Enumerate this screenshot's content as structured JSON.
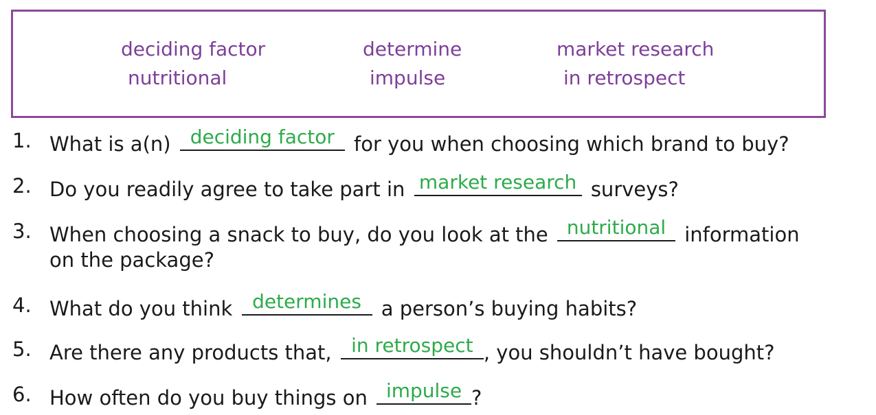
{
  "word_bank": {
    "col1": [
      "deciding factor",
      "nutritional"
    ],
    "col2": [
      "determine",
      "impulse"
    ],
    "col3": [
      "market research",
      "in retrospect"
    ]
  },
  "questions": [
    {
      "number": "1.",
      "before": "What is a(n)",
      "answer": "deciding factor",
      "after": "for you when choosing which brand to buy?"
    },
    {
      "number": "2.",
      "before": "Do you readily agree to take part in",
      "answer": "market research",
      "after": "surveys?"
    },
    {
      "number": "3.",
      "before": "When choosing a snack to buy, do you look at the",
      "answer": "nutritional",
      "after": "information",
      "line2": "on the package?"
    },
    {
      "number": "4.",
      "before": "What do you think",
      "answer": "determines",
      "after": "a person’s buying habits?"
    },
    {
      "number": "5.",
      "before": "Are there any products that,",
      "answer": "in retrospect",
      "after": ", you shouldn’t have bought?"
    },
    {
      "number": "6.",
      "before": "How often do you buy things on",
      "answer": "impulse",
      "after": "?"
    }
  ],
  "colors": {
    "word_bank_text": "#7d3f98",
    "word_bank_border": "#8a4a9c",
    "answer_text": "#2dab4a"
  }
}
